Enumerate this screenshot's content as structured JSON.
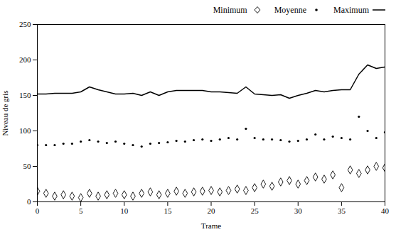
{
  "chart_data": {
    "type": "line",
    "xlabel": "Trame",
    "ylabel": "Niveau de gris",
    "x": [
      0,
      1,
      2,
      3,
      4,
      5,
      6,
      7,
      8,
      9,
      10,
      11,
      12,
      13,
      14,
      15,
      16,
      17,
      18,
      19,
      20,
      21,
      22,
      23,
      24,
      25,
      26,
      27,
      28,
      29,
      30,
      31,
      32,
      33,
      34,
      35,
      36,
      37,
      38,
      39,
      40
    ],
    "xlim": [
      0,
      40
    ],
    "ylim": [
      0,
      250
    ],
    "xticks": [
      0,
      5,
      10,
      15,
      20,
      25,
      30,
      35,
      40
    ],
    "yticks": [
      0,
      50,
      100,
      150,
      200,
      250
    ],
    "grid": false,
    "legend": "upper right",
    "series": [
      {
        "name": "Minimum",
        "type": "scatter",
        "marker": "diamond",
        "color": "#000000",
        "values": [
          15,
          12,
          8,
          10,
          8,
          6,
          12,
          8,
          10,
          12,
          10,
          8,
          12,
          14,
          10,
          12,
          15,
          12,
          14,
          15,
          16,
          14,
          16,
          18,
          16,
          20,
          25,
          22,
          28,
          30,
          25,
          30,
          35,
          32,
          38,
          20,
          45,
          40,
          45,
          50,
          48
        ]
      },
      {
        "name": "Moyenne",
        "type": "scatter",
        "marker": "dot",
        "color": "#000000",
        "values": [
          80,
          80,
          80,
          82,
          82,
          85,
          87,
          85,
          83,
          85,
          82,
          80,
          78,
          82,
          83,
          84,
          86,
          85,
          87,
          88,
          86,
          88,
          90,
          88,
          103,
          90,
          88,
          88,
          87,
          85,
          86,
          88,
          95,
          88,
          92,
          90,
          88,
          120,
          100,
          90,
          98
        ]
      },
      {
        "name": "Maximum",
        "type": "line",
        "line_style": "solid",
        "color": "#000000",
        "values": [
          152,
          152,
          153,
          153,
          153,
          155,
          162,
          158,
          155,
          152,
          152,
          153,
          150,
          155,
          150,
          155,
          157,
          157,
          157,
          157,
          155,
          155,
          154,
          153,
          162,
          152,
          151,
          150,
          151,
          146,
          150,
          153,
          157,
          155,
          157,
          158,
          158,
          180,
          193,
          188,
          190
        ]
      }
    ]
  }
}
